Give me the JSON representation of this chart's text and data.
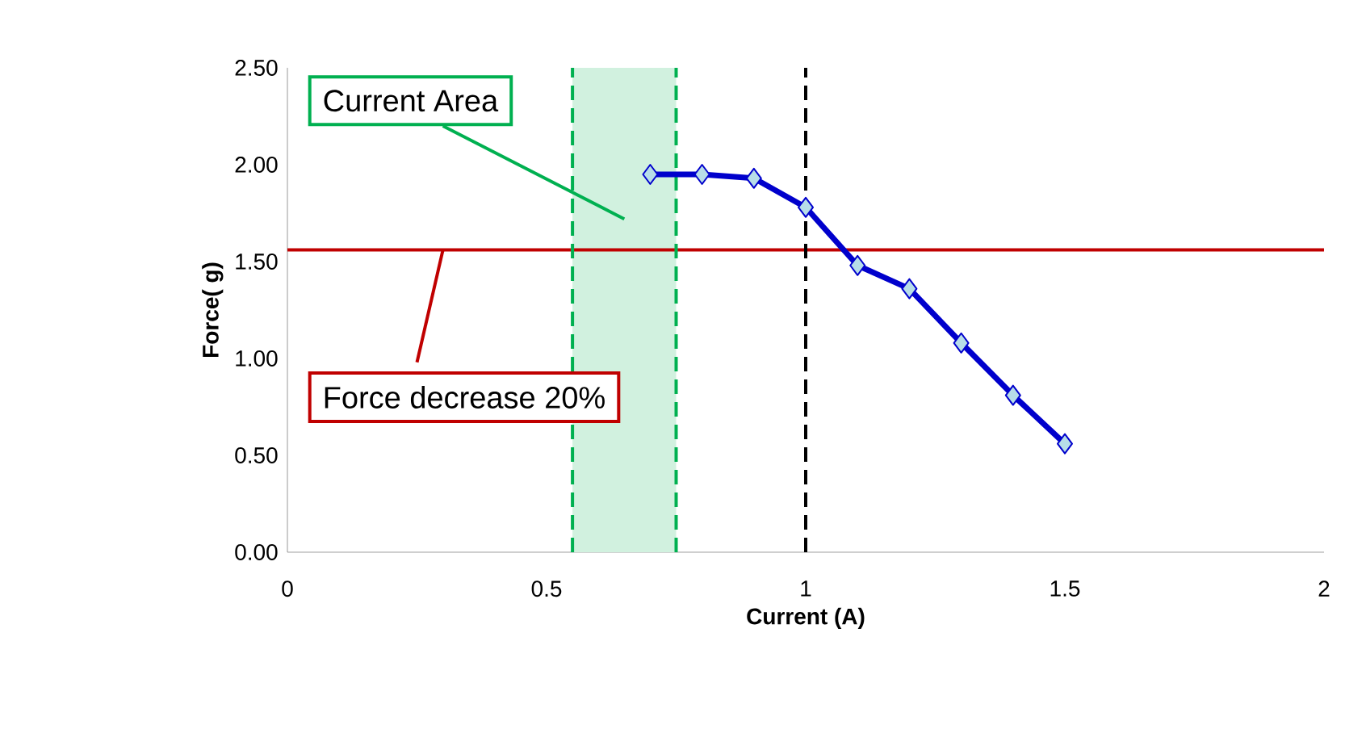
{
  "chart_data": {
    "type": "line",
    "xlabel": "Current (A)",
    "ylabel": "Force( g)",
    "x": [
      0.7,
      0.8,
      0.9,
      1.0,
      1.1,
      1.2,
      1.3,
      1.4,
      1.5
    ],
    "series": [
      {
        "color": "#0000cc",
        "values": [
          1.95,
          1.95,
          1.93,
          1.78,
          1.48,
          1.36,
          1.08,
          0.81,
          0.56
        ]
      }
    ],
    "xlim": [
      0,
      2
    ],
    "xticks": [
      {
        "value": 0,
        "label": "0"
      },
      {
        "value": 0.5,
        "label": "0.5"
      },
      {
        "value": 1,
        "label": "1"
      },
      {
        "value": 1.5,
        "label": "1.5"
      },
      {
        "value": 2,
        "label": "2"
      }
    ],
    "ylim": [
      0,
      2.5
    ],
    "yticks": [
      {
        "value": 0,
        "label": "0.00"
      },
      {
        "value": 0.5,
        "label": "0.50"
      },
      {
        "value": 1,
        "label": "1.00"
      },
      {
        "value": 1.5,
        "label": "1.50"
      },
      {
        "value": 2,
        "label": "2.00"
      },
      {
        "value": 2.5,
        "label": "2.50"
      }
    ],
    "marker": "diamond",
    "line_style": "solid",
    "ref_lines": [
      {
        "axis": "y",
        "value": 1.56,
        "color": "#c00000",
        "line_style": "solid"
      },
      {
        "axis": "x",
        "value": 1.0,
        "color": "#000000",
        "line_style": "dashed"
      },
      {
        "axis": "x",
        "value": 0.55,
        "color": "#00b050",
        "line_style": "dashed"
      },
      {
        "axis": "x",
        "value": 0.75,
        "color": "#00b050",
        "line_style": "dashed"
      }
    ],
    "bands": [
      {
        "axis": "x",
        "from": 0.55,
        "to": 0.75,
        "color": "#d1f1df"
      }
    ],
    "annotations": [
      "Current Area",
      {
        "text": "Force decrease 20%",
        "x": 0.3,
        "y": 1.56
      }
    ]
  }
}
